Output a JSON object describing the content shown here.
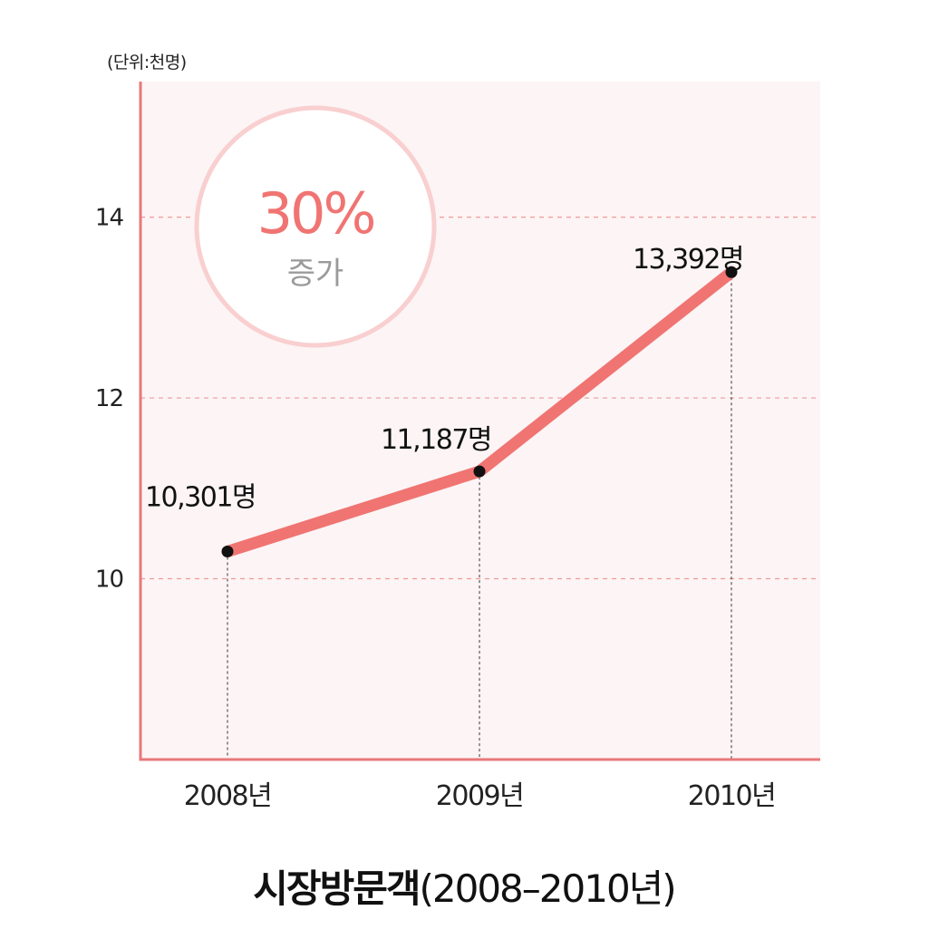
{
  "chart_data": {
    "type": "line",
    "title": "시장방문객",
    "title_suffix": "(2008–2010년)",
    "unit_label": "(단위:천명)",
    "categories": [
      "2008년",
      "2009년",
      "2010년"
    ],
    "series": [
      {
        "values": [
          10.301,
          11.187,
          13.392
        ],
        "data_labels": [
          "10,301명",
          "11,187명",
          "13,392명"
        ]
      }
    ],
    "y_ticks": [
      10,
      12,
      14
    ],
    "ylim": [
      8,
      15.5
    ],
    "grid": "dashed horizontal at ticks",
    "badge": {
      "value": "30%",
      "caption": "증가"
    },
    "colors": {
      "line": "#f07472",
      "axis": "#e8777a",
      "grid": "#f09a9a",
      "plot_bg": "#fcf4f5",
      "badge_ring": "#f9cfd0",
      "point": "#111111"
    }
  }
}
